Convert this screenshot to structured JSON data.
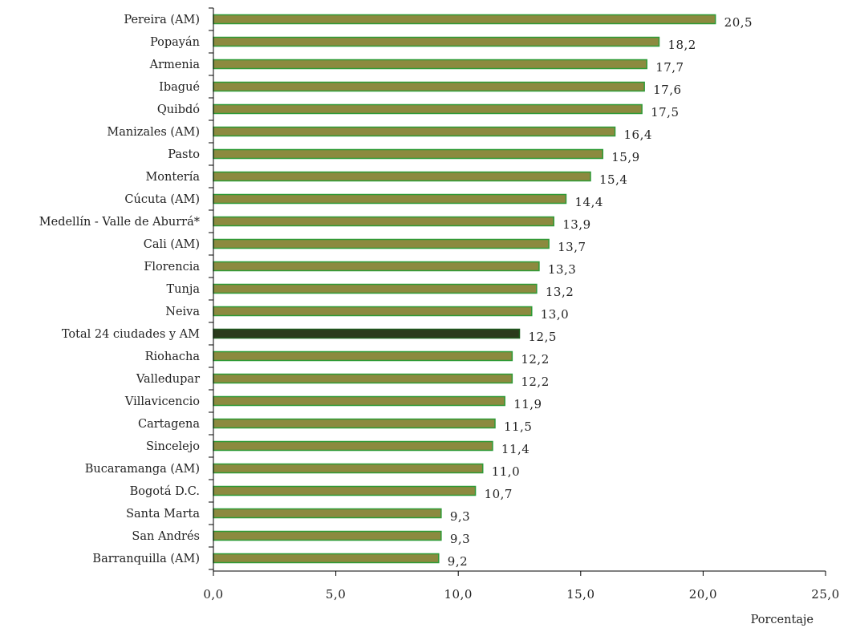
{
  "chart_data": {
    "type": "bar",
    "orientation": "horizontal",
    "title": "",
    "xlabel": "Porcentaje",
    "ylabel": "",
    "xlim": [
      0,
      25
    ],
    "x_ticks": [
      "0,0",
      "5,0",
      "10,0",
      "15,0",
      "20,0",
      "25,0"
    ],
    "grid": false,
    "legend": "none",
    "categories": [
      "Pereira (AM)",
      "Popayán",
      "Armenia",
      "Ibagué",
      "Quibdó",
      "Manizales (AM)",
      "Pasto",
      "Montería",
      "Cúcuta (AM)",
      "Medellín - Valle de Aburrá*",
      "Cali (AM)",
      "Florencia",
      "Tunja",
      "Neiva",
      "Total 24 ciudades y AM",
      "Riohacha",
      "Valledupar",
      "Villavicencio",
      "Cartagena",
      "Sincelejo",
      "Bucaramanga (AM)",
      "Bogotá D.C.",
      "Santa Marta",
      "San Andrés",
      "Barranquilla (AM)"
    ],
    "values": [
      20.5,
      18.2,
      17.7,
      17.6,
      17.5,
      16.4,
      15.9,
      15.4,
      14.4,
      13.9,
      13.7,
      13.3,
      13.2,
      13.0,
      12.5,
      12.2,
      12.2,
      11.9,
      11.5,
      11.4,
      11.0,
      10.7,
      9.3,
      9.3,
      9.2
    ],
    "value_labels": [
      "20,5",
      "18,2",
      "17,7",
      "17,6",
      "17,5",
      "16,4",
      "15,9",
      "15,4",
      "14,4",
      "13,9",
      "13,7",
      "13,3",
      "13,2",
      "13,0",
      "12,5",
      "12,2",
      "12,2",
      "11,9",
      "11,5",
      "11,4",
      "11,0",
      "10,7",
      "9,3",
      "9,3",
      "9,2"
    ],
    "highlight_category": "Total 24 ciudades y AM",
    "colors": {
      "bar_fill": "#8c8a3f",
      "bar_border": "#2e9a36",
      "highlight_fill": "#2b3a1c",
      "highlight_border": "#1f5a1f",
      "axis": "#000000"
    }
  }
}
